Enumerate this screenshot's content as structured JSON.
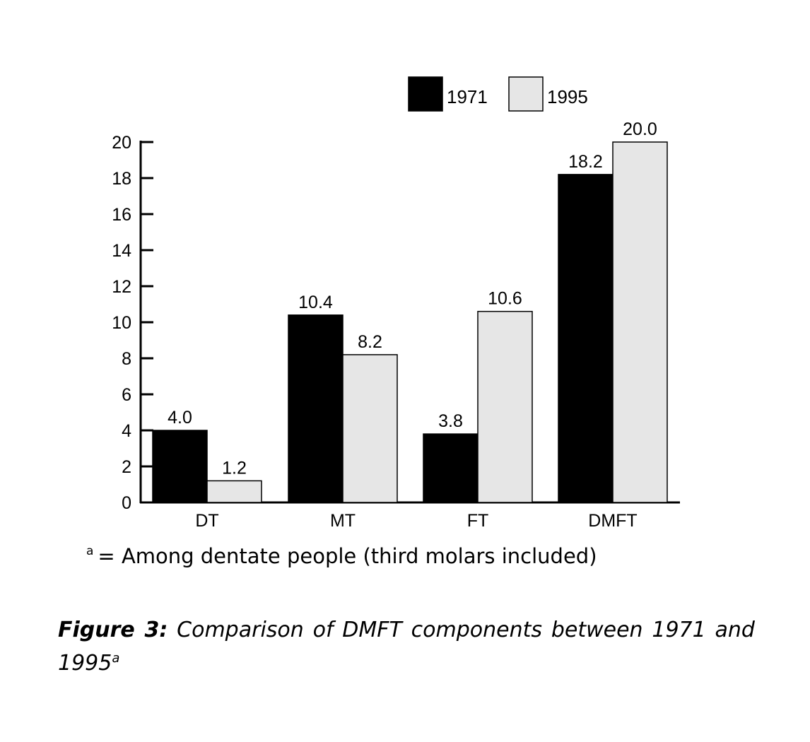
{
  "chart_data": {
    "type": "bar",
    "categories": [
      "DT",
      "MT",
      "FT",
      "DMFT"
    ],
    "series": [
      {
        "name": "1971",
        "values": [
          4.0,
          10.4,
          3.8,
          18.2
        ],
        "labels": [
          "4.0",
          "10.4",
          "3.8",
          "18.2"
        ],
        "color": "#000000"
      },
      {
        "name": "1995",
        "values": [
          1.2,
          8.2,
          10.6,
          20.0
        ],
        "labels": [
          "1.2",
          "8.2",
          "10.6",
          "20.0"
        ],
        "color": "#e6e6e6"
      }
    ],
    "yticks": [
      "0",
      "2",
      "4",
      "6",
      "8",
      "10",
      "12",
      "14",
      "16",
      "18",
      "20"
    ],
    "ylim": [
      0,
      20
    ],
    "grid": false,
    "legend_position": "top-right"
  },
  "footnote": {
    "marker": "a",
    "text": "= Among dentate people (third molars included)"
  },
  "caption": {
    "label": "Figure 3:",
    "text": "Comparison of DMFT components between 1971 and 1995",
    "marker": "a"
  }
}
